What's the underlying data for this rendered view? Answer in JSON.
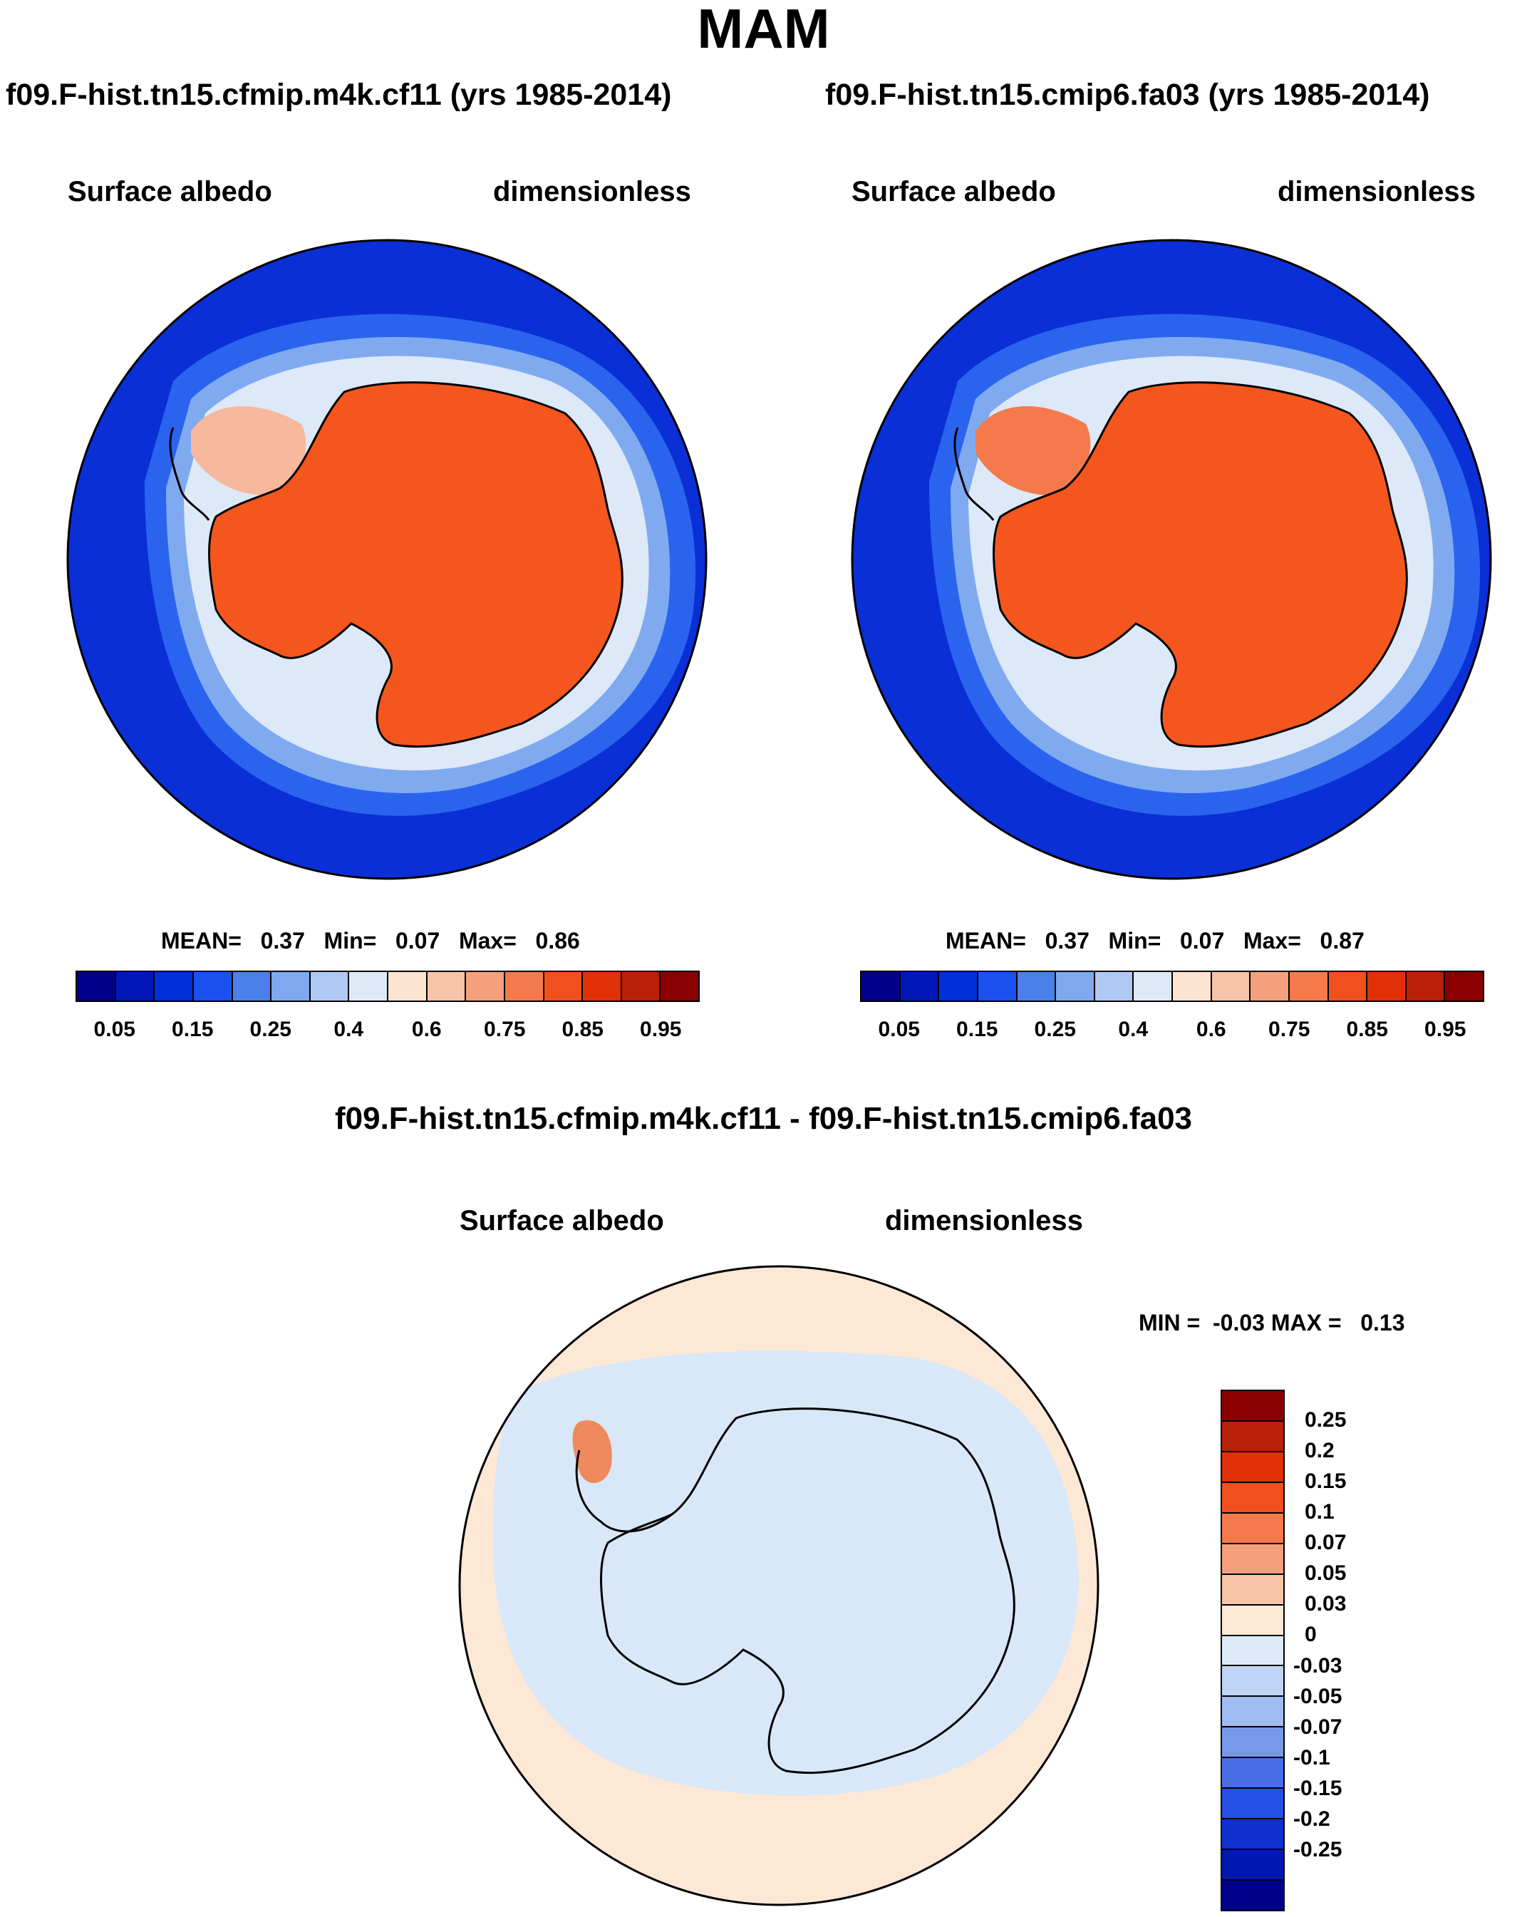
{
  "title": "MAM",
  "panels": [
    {
      "case": "f09.F-hist.tn15.cfmip.m4k.cf11 (yrs 1985-2014)",
      "variable": "Surface albedo",
      "units": "dimensionless",
      "stats": {
        "mean_label": "MEAN=",
        "mean": "0.37",
        "min_label": "Min=",
        "min": "0.07",
        "max_label": "Max=",
        "max": "0.86"
      }
    },
    {
      "case": "f09.F-hist.tn15.cmip6.fa03 (yrs 1985-2014)",
      "variable": "Surface albedo",
      "units": "dimensionless",
      "stats": {
        "mean_label": "MEAN=",
        "mean": "0.37",
        "min_label": "Min=",
        "min": "0.07",
        "max_label": "Max=",
        "max": "0.87"
      }
    }
  ],
  "abs_colorbar": {
    "colors": [
      "#00008b",
      "#0018b8",
      "#0030d8",
      "#1a50f0",
      "#4a80e8",
      "#80a8ee",
      "#b0c8f4",
      "#dceaf8",
      "#fde4d0",
      "#f8c4a8",
      "#f4a07c",
      "#f47a4c",
      "#f0501e",
      "#e03008",
      "#b82008",
      "#8b0000"
    ],
    "ticks": [
      "0.05",
      "0.15",
      "0.25",
      "0.4",
      "0.6",
      "0.75",
      "0.85",
      "0.95"
    ]
  },
  "diff": {
    "title": "f09.F-hist.tn15.cfmip.m4k.cf11 - f09.F-hist.tn15.cmip6.fa03",
    "variable": "Surface albedo",
    "units": "dimensionless",
    "minmax": "MIN =  -0.03 MAX =   0.13",
    "colors_top_to_bottom": [
      "#8b0000",
      "#b82008",
      "#e03008",
      "#f0501e",
      "#f47a4c",
      "#f4a07c",
      "#f8c4a8",
      "#fde8d6",
      "#dceaf8",
      "#c0d4f6",
      "#a0bcf2",
      "#7898ea",
      "#4a6ee6",
      "#2450e8",
      "#1030d0",
      "#0018b0",
      "#00008b"
    ],
    "ticks_top_to_bottom": [
      "0.25",
      "0.2",
      "0.15",
      "0.1",
      "0.07",
      "0.05",
      "0.03",
      "0",
      "-0.03",
      "-0.05",
      "-0.07",
      "-0.1",
      "-0.15",
      "-0.2",
      "-0.25"
    ]
  },
  "map_colors": {
    "ocean": "#0a2fd6",
    "ice": "#f4561e",
    "ring1": "#2a64ee",
    "ring2": "#80aaf0",
    "ring3": "#dde9f8",
    "peninsula": "#f8b89c",
    "diff_ocean": "#fde8d6",
    "diff_ice": "#d8e8f8",
    "diff_hot": "#f08a5c"
  }
}
